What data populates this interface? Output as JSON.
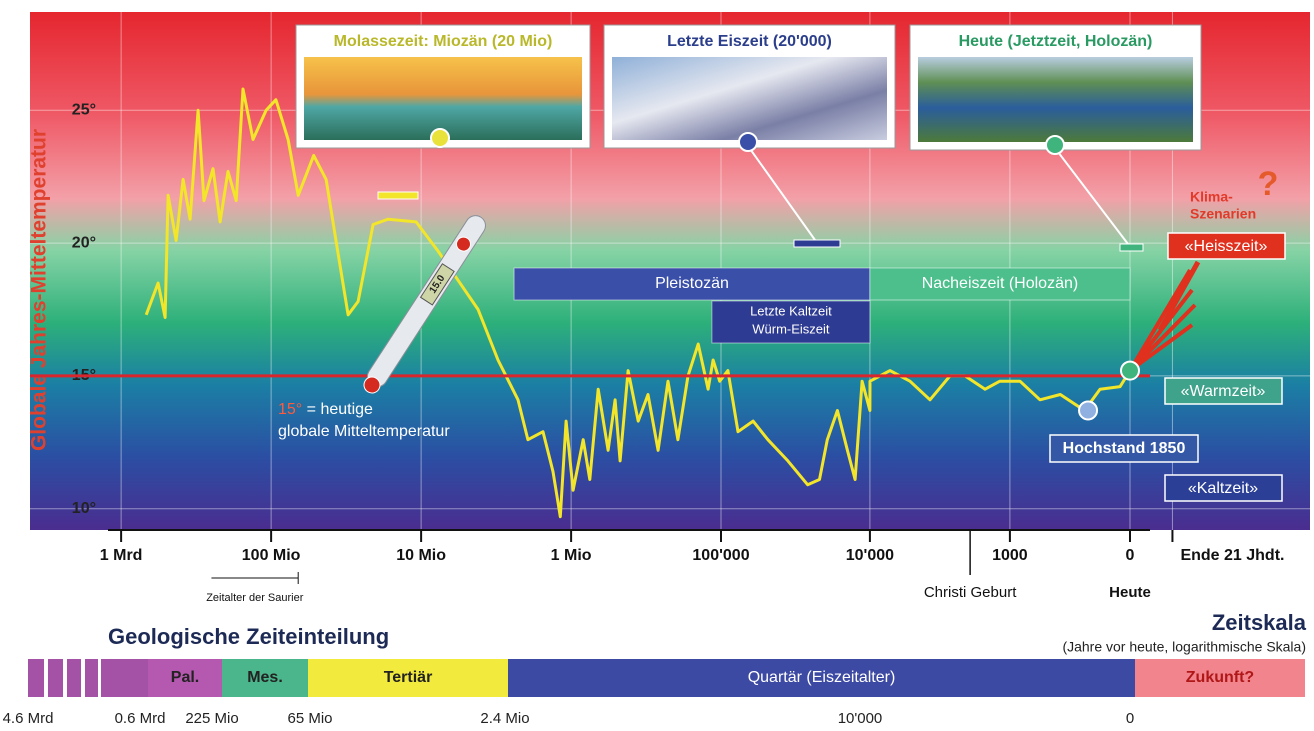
{
  "chart_data": {
    "type": "line",
    "y_label": "Globale Jahres-Mitteltemperatur",
    "xscale": "log",
    "xlim": [
      3500000000,
      -170
    ],
    "xticks": [
      {
        "value": 1000000000,
        "label": "1 Mrd"
      },
      {
        "value": 100000000,
        "label": "100 Mio"
      },
      {
        "value": 10000000,
        "label": "10 Mio"
      },
      {
        "value": 1000000,
        "label": "1 Mio"
      },
      {
        "value": 100000,
        "label": "100'000"
      },
      {
        "value": 10000,
        "label": "10'000"
      },
      1000,
      0,
      {
        "value": -90,
        "label": "Ende 21 Jhdt."
      }
    ],
    "x_annotations": [
      {
        "value": 2000,
        "label": "Christi Geburt"
      },
      {
        "value": 0,
        "label": "Heute"
      }
    ],
    "ylim": [
      9.2,
      28.7
    ],
    "yticks": [
      {
        "value": 10,
        "label": "10°"
      },
      {
        "value": 15,
        "label": "15°"
      },
      {
        "value": 20,
        "label": "20°"
      },
      {
        "value": 25,
        "label": "25°"
      }
    ],
    "grid": true,
    "series": [
      {
        "color": "#f2e52a",
        "x": [
          680000000,
          567000000,
          509000000,
          486000000,
          430000000,
          386000000,
          347000000,
          307000000,
          280000000,
          244000000,
          219000000,
          194000000,
          171000000,
          154000000,
          132000000,
          108000000,
          93000000,
          77000000,
          66000000,
          52000000,
          43000000,
          36000000,
          30700000,
          26300000,
          20900000,
          16600000,
          10800000,
          7700000,
          5670000,
          4170000,
          3070000,
          2260000,
          1940000,
          1540000,
          1320000,
          1180000,
          1080000,
          970000,
          830000,
          750000,
          660000,
          567000,
          509000,
          471000,
          417000,
          357000,
          307000,
          263000,
          226000,
          194000,
          166000,
          142000,
          122000,
          113000,
          102000,
          90000,
          77000,
          61000,
          48600,
          35700,
          26300,
          21900,
          19400,
          16600,
          14200,
          12600,
          11300,
          10000,
          9980,
          7300,
          5320,
          3860,
          2790,
          2180,
          1550,
          1200,
          830,
          560,
          360,
          190,
          110,
          31,
          0
        ],
        "values": [
          17.3,
          18.5,
          17.2,
          21.8,
          20.1,
          22.4,
          20.9,
          25.0,
          21.6,
          22.8,
          20.8,
          22.7,
          21.6,
          25.8,
          23.9,
          25.0,
          25.4,
          23.9,
          21.8,
          23.3,
          22.4,
          19.7,
          17.3,
          17.8,
          20.7,
          20.9,
          20.8,
          19.7,
          18.6,
          17.5,
          15.6,
          14.1,
          12.6,
          12.9,
          11.4,
          9.7,
          13.3,
          10.7,
          12.6,
          11.1,
          14.5,
          12.2,
          14.1,
          11.8,
          15.2,
          13.3,
          14.3,
          12.2,
          14.8,
          12.6,
          15.0,
          16.2,
          14.5,
          15.6,
          14.8,
          15.2,
          12.9,
          13.3,
          12.6,
          11.8,
          10.9,
          11.1,
          12.6,
          13.7,
          12.2,
          11.1,
          14.8,
          13.7,
          14.8,
          15.2,
          14.8,
          14.1,
          15.0,
          15.0,
          14.5,
          14.8,
          14.8,
          14.1,
          14.3,
          13.7,
          14.5,
          14.6,
          15.2
        ]
      }
    ],
    "reference_line": {
      "value": 15,
      "color": "#d9262c",
      "label_parts": [
        "15°",
        " = heutige",
        "globale Mitteltemperatur"
      ]
    },
    "periods": [
      {
        "label": "Pleistozän",
        "start": 2400000,
        "end": 10000,
        "color": "#3a4fa8"
      },
      {
        "label": "Nacheiszeit (Holozän)",
        "start": 10000,
        "end": 0,
        "color": "#4cbf8c"
      },
      {
        "label_lines": [
          "Letzte Kaltzeit",
          "Würm-Eiszeit"
        ],
        "start": 115000,
        "end": 10000,
        "color": "#2e3b92"
      }
    ],
    "era_span": {
      "label": "Zeitalter der Saurier",
      "start": 250000000,
      "end": 66000000
    },
    "pictures": [
      {
        "caption": "Molassezeit: Miozän (20 Mio)",
        "caption_color": "#b9b82a"
      },
      {
        "caption": "Letzte Eiszeit (20'000)",
        "caption_color": "#2b3e8c"
      },
      {
        "caption": "Heute (Jetztzeit, Holozän)",
        "caption_color": "#2a9a63"
      }
    ],
    "thermometer": "15.0",
    "scenario_title": [
      "Klima-",
      "Szenarien"
    ],
    "scenario_mark": "?",
    "zones": [
      "«Heisszeit»",
      "«Warmzeit»",
      "«Kaltzeit»"
    ],
    "hochstand": "Hochstand 1850"
  },
  "timescale": {
    "title": "Geologische Zeiteinteilung",
    "scale_title": "Zeitskala",
    "scale_note": "(Jahre vor heute, logarithmische Skala)",
    "segments": [
      {
        "label": "Pal.",
        "color": "#b458b0"
      },
      {
        "label": "Mes.",
        "color": "#4bb58b"
      },
      {
        "label": "Tertiär",
        "color": "#f2ea3c"
      },
      {
        "label": "Quartär (Eiszeitalter)",
        "color": "#3d4aa3"
      },
      {
        "label": "Zukunft?",
        "color": "#f2848e"
      }
    ],
    "boundaries": [
      "4.6 Mrd",
      "0.6 Mrd",
      "225 Mio",
      "65 Mio",
      "2.4 Mio",
      "10'000",
      "0"
    ]
  }
}
